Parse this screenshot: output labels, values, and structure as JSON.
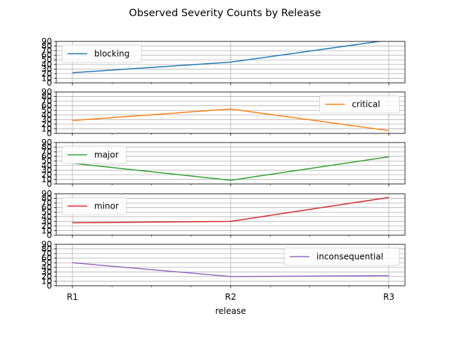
{
  "chart_data": {
    "type": "line",
    "title": "Observed Severity Counts by Release",
    "xlabel": "release",
    "categories": [
      "R1",
      "R2",
      "R3"
    ],
    "ylim": [
      0,
      90
    ],
    "yticks": [
      0,
      10,
      20,
      30,
      40,
      50,
      60,
      70,
      80,
      90
    ],
    "grid": true,
    "layout": "stacked-subplots-shared-x",
    "series": [
      {
        "name": "blocking",
        "values": [
          22,
          45,
          93
        ],
        "color": "#1f77b4",
        "legend": "top-left"
      },
      {
        "name": "critical",
        "values": [
          28,
          53,
          6
        ],
        "color": "#ff7f0e",
        "legend": "right"
      },
      {
        "name": "major",
        "values": [
          45,
          8,
          59
        ],
        "color": "#2ca02c",
        "legend": "top-left"
      },
      {
        "name": "minor",
        "values": [
          27,
          30,
          82
        ],
        "color": "#d62728",
        "legend": "top-left"
      },
      {
        "name": "inconsequential",
        "values": [
          50,
          20,
          22
        ],
        "color": "#9467bd",
        "legend": "right"
      }
    ]
  }
}
